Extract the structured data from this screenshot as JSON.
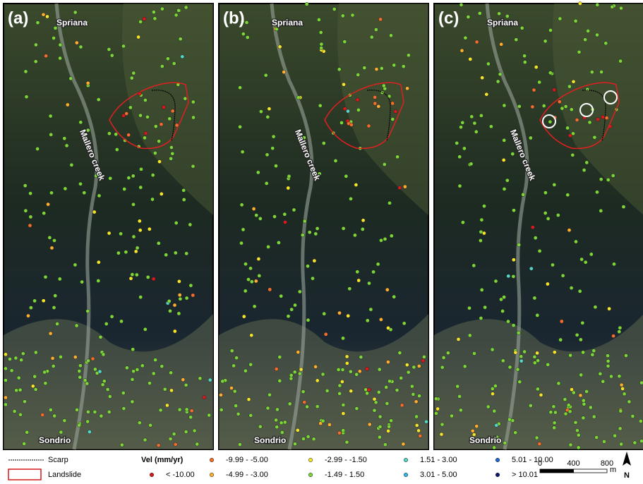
{
  "panels": [
    {
      "label": "(a)",
      "places": [
        "Spriana",
        "Mallero creek",
        "Sondrio"
      ]
    },
    {
      "label": "(b)",
      "places": [
        "Spriana",
        "Mallero creek",
        "Sondrio"
      ]
    },
    {
      "label": "(c)",
      "places": [
        "Spriana",
        "Mallero creek",
        "Sondrio"
      ]
    }
  ],
  "legend": {
    "scarp": "Scarp",
    "landslide": "Landslide",
    "velocity_title": "Vel (mm/yr)",
    "classes": [
      {
        "label": "< -10.00",
        "color": "#d7191c"
      },
      {
        "label": "-9.99 - -5.00",
        "color": "#f46d2c"
      },
      {
        "label": "-4.99 - -3.00",
        "color": "#fdae2e"
      },
      {
        "label": "-2.99 - -1.50",
        "color": "#f5e52a"
      },
      {
        "label": "-1.49 - 1.50",
        "color": "#7cd637"
      },
      {
        "label": "1.51 - 3.00",
        "color": "#53d6c4"
      },
      {
        "label": "3.01 - 5.00",
        "color": "#2fb5e8"
      },
      {
        "label": "5.01 - 10.00",
        "color": "#2166d6"
      },
      {
        "label": "> 10.01",
        "color": "#0b1a6e"
      }
    ]
  },
  "scale_bar": {
    "ticks": [
      0,
      400,
      800
    ],
    "unit": "m"
  },
  "north": "N"
}
